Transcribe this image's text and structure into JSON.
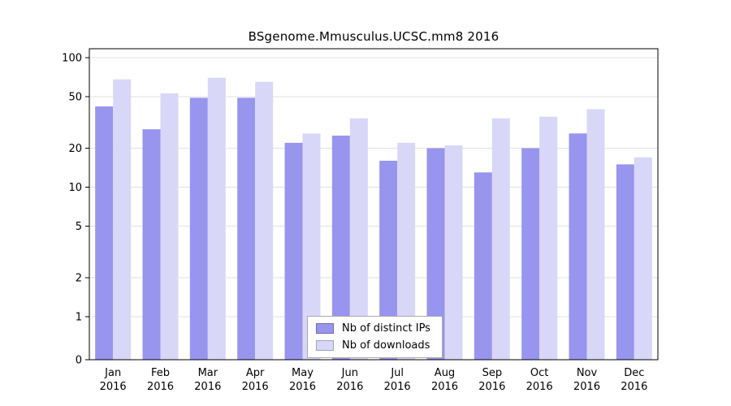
{
  "chart_data": {
    "type": "bar",
    "title": "BSgenome.Mmusculus.UCSC.mm8 2016",
    "categories": [
      "Jan",
      "Feb",
      "Mar",
      "Apr",
      "May",
      "Jun",
      "Jul",
      "Aug",
      "Sep",
      "Oct",
      "Nov",
      "Dec"
    ],
    "year": "2016",
    "series": [
      {
        "name": "Nb of distinct IPs",
        "color": "#9795ee",
        "values": [
          42,
          28,
          49,
          49,
          22,
          25,
          16,
          20,
          13,
          20,
          26,
          15
        ]
      },
      {
        "name": "Nb of downloads",
        "color": "#d9d7f8",
        "values": [
          68,
          53,
          70,
          65,
          26,
          34,
          22,
          21,
          34,
          35,
          40,
          17
        ]
      }
    ],
    "y_ticks": [
      0,
      1,
      2,
      5,
      10,
      20,
      50,
      100
    ],
    "y_scale": "log",
    "ylim": [
      0,
      100
    ],
    "xlabel": "",
    "ylabel": "",
    "grid": true,
    "legend_position": "bottom-center",
    "colors": {
      "background": "#ffffff",
      "gridline": "#e2e2e2",
      "plot_border": "#000000",
      "axis_text": "#000000"
    }
  }
}
